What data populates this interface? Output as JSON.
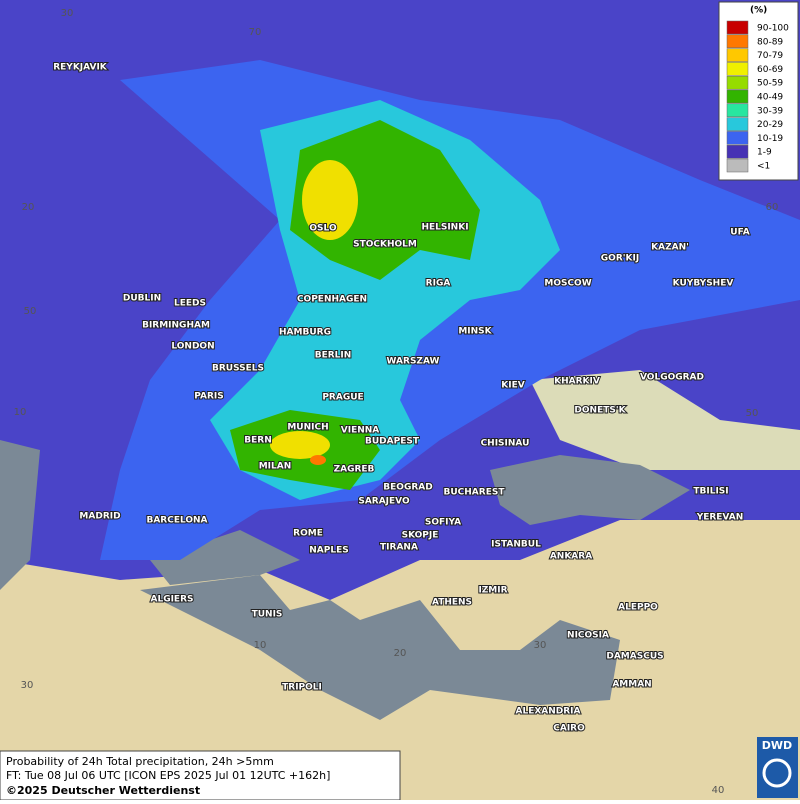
{
  "cities": [
    "REYKJAVIK",
    "OSLO",
    "STOCKHOLM",
    "HELSINKI",
    "GOR'KIJ",
    "KAZAN'",
    "UFA",
    "RIGA",
    "MOSCOW",
    "KUYBYSHEV",
    "DUBLIN",
    "LEEDS",
    "COPENHAGEN",
    "BIRMINGHAM",
    "HAMBURG",
    "MINSK",
    "LONDON",
    "BERLIN",
    "BRUSSELS",
    "WARSZAW",
    "KHARKIV",
    "VOLGOGRAD",
    "KIEV",
    "PARIS",
    "PRAGUE",
    "DONETS'K",
    "MUNICH",
    "VIENNA",
    "BERN",
    "BUDAPEST",
    "CHISINAU",
    "MILAN",
    "ZAGREB",
    "TBILISI",
    "BEOGRAD",
    "BUCHAREST",
    "SARAJEVO",
    "MADRID",
    "BARCELONA",
    "YEREVAN",
    "SOFIYA",
    "ROME",
    "SKOPJE",
    "ISTANBUL",
    "ANKARA",
    "NAPLES",
    "TIRANA",
    "ALGIERS",
    "ATHENS",
    "IZMIR",
    "ALEPPO",
    "TUNIS",
    "NICOSIA",
    "DAMASCUS",
    "AMMAN",
    "TRIPOLI",
    "ALEXANDRIA",
    "CAIRO"
  ],
  "grid_labels": [
    30,
    70,
    20,
    60,
    50,
    10,
    50,
    10,
    20,
    30,
    30,
    40
  ],
  "legend": {
    "unit": "(%)",
    "items": [
      {
        "label": "90-100",
        "color": "#c80000"
      },
      {
        "label": "80-89",
        "color": "#ff7800"
      },
      {
        "label": "70-79",
        "color": "#ffc800"
      },
      {
        "label": "60-69",
        "color": "#f0f000"
      },
      {
        "label": "50-59",
        "color": "#96dc00"
      },
      {
        "label": "40-49",
        "color": "#32b400"
      },
      {
        "label": "30-39",
        "color": "#28e6a0"
      },
      {
        "label": "20-29",
        "color": "#28c8dc"
      },
      {
        "label": "10-19",
        "color": "#3c64f0"
      },
      {
        "label": "1-9",
        "color": "#4632b4"
      },
      {
        "label": "<1",
        "color": "#bbbbbb"
      }
    ]
  },
  "footer": {
    "line1": "Probability of 24h Total precipitation, 24h >5mm",
    "line2": "FT: Tue 08 Jul 06 UTC [ICON EPS 2025 Jul 01 12UTC +162h]",
    "copyright": "©2025 Deutscher Wetterdienst"
  },
  "logo": "DWD"
}
